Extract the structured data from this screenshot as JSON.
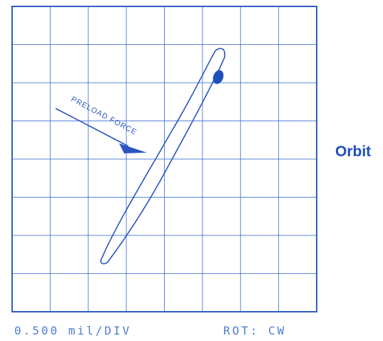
{
  "plot": {
    "annotation": "PRELOAD FORCE",
    "side_label": "Orbit",
    "scale": "0.500 mil/DIV",
    "rotation": "ROT: CW",
    "colors": {
      "grid": "#3f6fd0",
      "trace": "#2a56c0",
      "label": "#1f4fbf",
      "footer": "#4f7ed6"
    },
    "icons": {
      "keyphasor": "filled-ellipse-dot",
      "force": "arrow-icon"
    }
  }
}
